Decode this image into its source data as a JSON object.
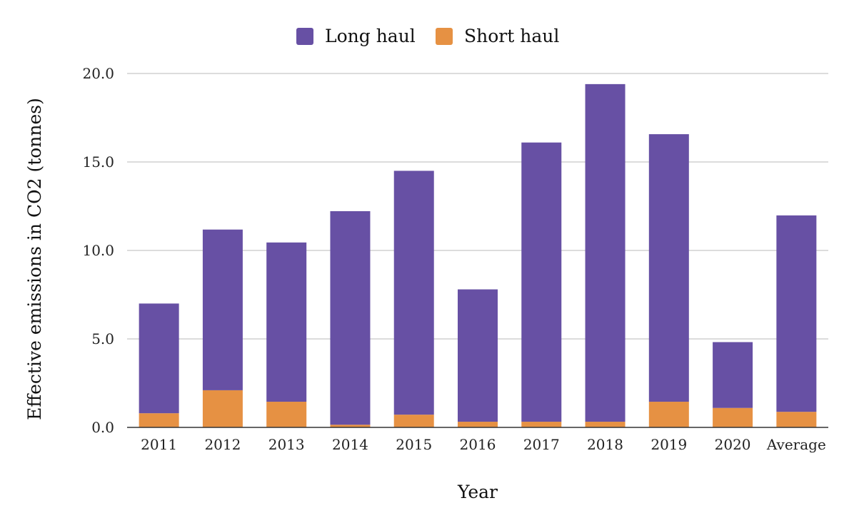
{
  "chart_data": {
    "type": "bar",
    "stacked": true,
    "categories": [
      "2011",
      "2012",
      "2013",
      "2014",
      "2015",
      "2016",
      "2017",
      "2018",
      "2019",
      "2020",
      "Average"
    ],
    "series": [
      {
        "name": "Short haul",
        "color": "#e69143",
        "values": [
          0.8,
          2.1,
          1.45,
          0.15,
          0.72,
          0.32,
          0.32,
          0.32,
          1.45,
          1.1,
          0.88
        ]
      },
      {
        "name": "Long haul",
        "color": "#6750a4",
        "values": [
          6.2,
          9.08,
          9.0,
          12.07,
          13.78,
          7.48,
          15.78,
          19.08,
          15.12,
          3.72,
          11.1
        ]
      }
    ],
    "legend_order": [
      "Long haul",
      "Short haul"
    ],
    "legend_position": "top-center",
    "xlabel": "Year",
    "ylabel": "Effective emissions in CO2 (tonnes)",
    "ylim": [
      0,
      20
    ],
    "yticks": [
      "0.0",
      "5.0",
      "10.0",
      "15.0",
      "20.0"
    ],
    "ytick_values": [
      0,
      5,
      10,
      15,
      20
    ],
    "grid": true,
    "grid_color": "#c8c8c8"
  }
}
